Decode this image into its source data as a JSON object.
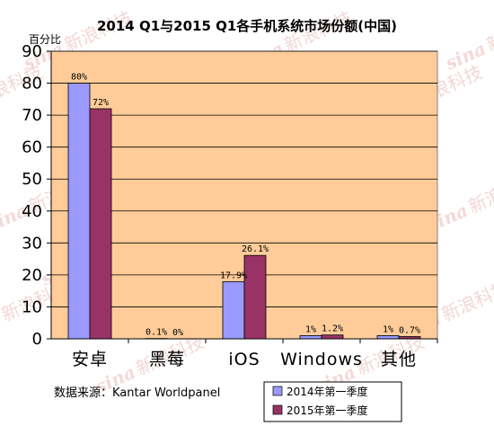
{
  "chart_data": {
    "type": "bar",
    "title": "2014 Q1与2015 Q1各手机系统市场份额(中国)",
    "ylabel": "百分比",
    "xlabel": "",
    "ylim": [
      0,
      90
    ],
    "yticks": [
      0,
      10,
      20,
      30,
      40,
      50,
      60,
      70,
      80,
      90
    ],
    "categories": [
      "安卓",
      "黑莓",
      "iOS",
      "Windows",
      "其他"
    ],
    "series": [
      {
        "name": "2014年第一季度",
        "color": "#9999ff",
        "values": [
          80,
          0.1,
          17.9,
          1,
          1
        ],
        "labels": [
          "80%",
          "0.1%",
          "17.9%",
          "1%",
          "1%"
        ]
      },
      {
        "name": "2015年第一季度",
        "color": "#993366",
        "values": [
          72,
          0,
          26.1,
          1.2,
          0.7
        ],
        "labels": [
          "72%",
          "0%",
          "26.1%",
          "1.2%",
          "0.7%"
        ]
      }
    ],
    "plot_background": "#ffcc99",
    "grid": true,
    "legend_position": "bottom-right",
    "source": "数据来源：Kantar Worldpanel"
  },
  "watermark": {
    "logo": "sina",
    "text": "新浪科技"
  }
}
